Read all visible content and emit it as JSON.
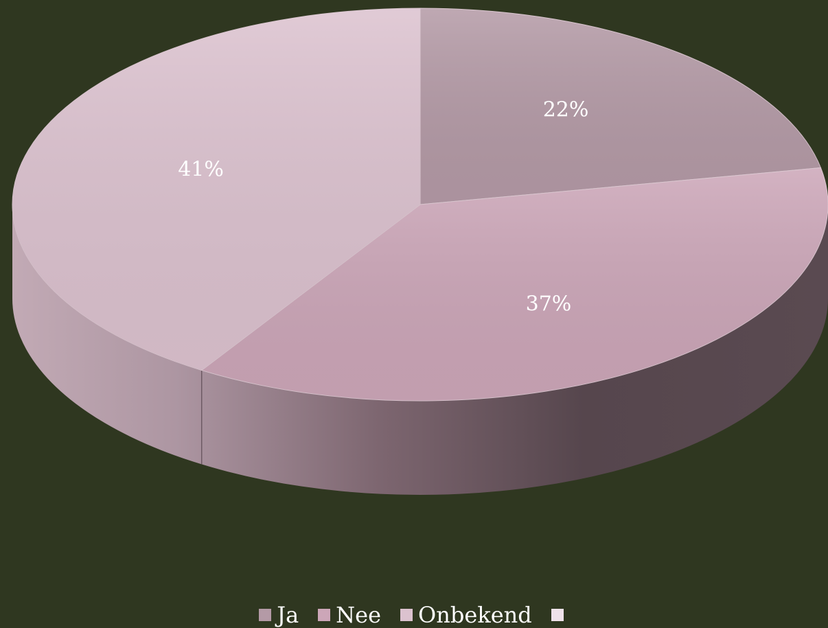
{
  "chart_data": {
    "type": "pie",
    "categories": [
      "Ja",
      "Nee",
      "Onbekend",
      ""
    ],
    "values": [
      22,
      37,
      41,
      0
    ],
    "labels": [
      "22%",
      "37%",
      "41%",
      ""
    ],
    "colors": [
      "#b49aa6",
      "#cca6b8",
      "#dcc2cf",
      "#efe2ea"
    ],
    "legend_position": "bottom",
    "three_d": true
  }
}
